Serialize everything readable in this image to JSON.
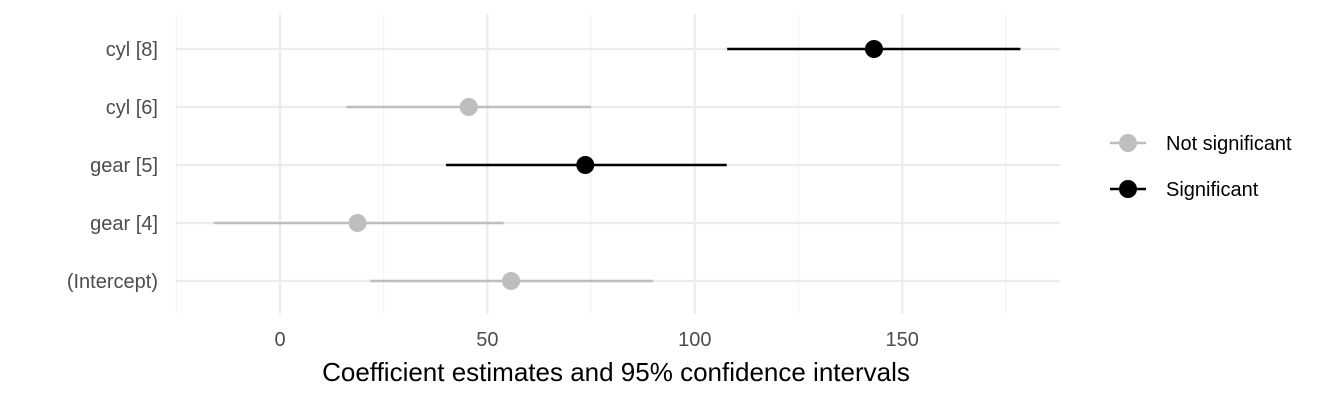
{
  "chart_data": {
    "type": "scatter",
    "title": "",
    "xlabel": "Coefficient estimates and 95% confidence intervals",
    "ylabel": "",
    "xlim": [
      -25,
      188
    ],
    "x_ticks": [
      0,
      50,
      100,
      150
    ],
    "x_tick_labels": [
      "0",
      "50",
      "100",
      "150"
    ],
    "grid": true,
    "legend_position": "right",
    "colors": {
      "Not significant": "#bebebe",
      "Significant": "#000000"
    },
    "legend": [
      "Not significant",
      "Significant"
    ],
    "terms": [
      {
        "term": "cyl [8]",
        "estimate": 143.2,
        "conf_low": 107.8,
        "conf_high": 178.5,
        "group": "Significant"
      },
      {
        "term": "cyl [6]",
        "estimate": 45.5,
        "conf_low": 16.0,
        "conf_high": 75.0,
        "group": "Not significant"
      },
      {
        "term": "gear [5]",
        "estimate": 73.6,
        "conf_low": 40.0,
        "conf_high": 107.7,
        "group": "Significant"
      },
      {
        "term": "gear [4]",
        "estimate": 18.7,
        "conf_low": -16.0,
        "conf_high": 53.9,
        "group": "Not significant"
      },
      {
        "term": "(Intercept)",
        "estimate": 55.7,
        "conf_low": 21.8,
        "conf_high": 89.9,
        "group": "Not significant"
      }
    ]
  }
}
